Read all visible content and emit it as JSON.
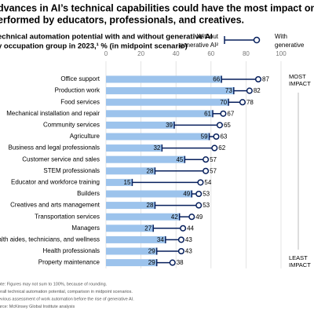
{
  "chart_data": {
    "type": "dumbbell-bar",
    "title": [
      "dvances in AI’s technical capabilities could have the most impact on activities",
      "erformed by educators, professionals, and creatives."
    ],
    "subtitle": [
      "echnical automation potential with and without generative AI",
      "y occupation group in 2023,¹ % (in midpoint scenario)"
    ],
    "categories": [
      "Office support",
      "Production work",
      "Food services",
      "Mechanical installation and repair",
      "Community services",
      "Agriculture",
      "Business and legal professionals",
      "Customer service and sales",
      "STEM professionals",
      "Educator and workforce training",
      "Builders",
      "Creatives and arts management",
      "Transportation services",
      "Managers",
      "ealth aides, technicians, and wellness",
      "Health professionals",
      "Property maintenance"
    ],
    "series": [
      {
        "name": "Without generative AI²",
        "color": "#9cc3ec",
        "values": [
          66,
          73,
          70,
          61,
          39,
          59,
          32,
          45,
          28,
          15,
          49,
          28,
          42,
          27,
          34,
          29,
          29
        ]
      },
      {
        "name": "With generative",
        "color": "#061f5c",
        "values": [
          87,
          82,
          78,
          67,
          65,
          63,
          62,
          57,
          57,
          54,
          53,
          53,
          49,
          44,
          43,
          43,
          38
        ]
      }
    ],
    "xlim": [
      0,
      100
    ],
    "xticks": [
      0,
      20,
      40,
      60,
      80,
      100
    ],
    "grid": true,
    "side_labels": {
      "top": [
        "MOST",
        "IMPACT"
      ],
      "bottom": [
        "LEAST",
        "IMPACT"
      ]
    },
    "footnotes": [
      "ote: Figures may not sum to 100%, because of rounding.",
      "erall technical automation potential, comparison in midpoint scenarios.",
      "evious assessment of work automation before the rise of generative AI.",
      "urce: McKinsey Global Institute analysis"
    ]
  }
}
